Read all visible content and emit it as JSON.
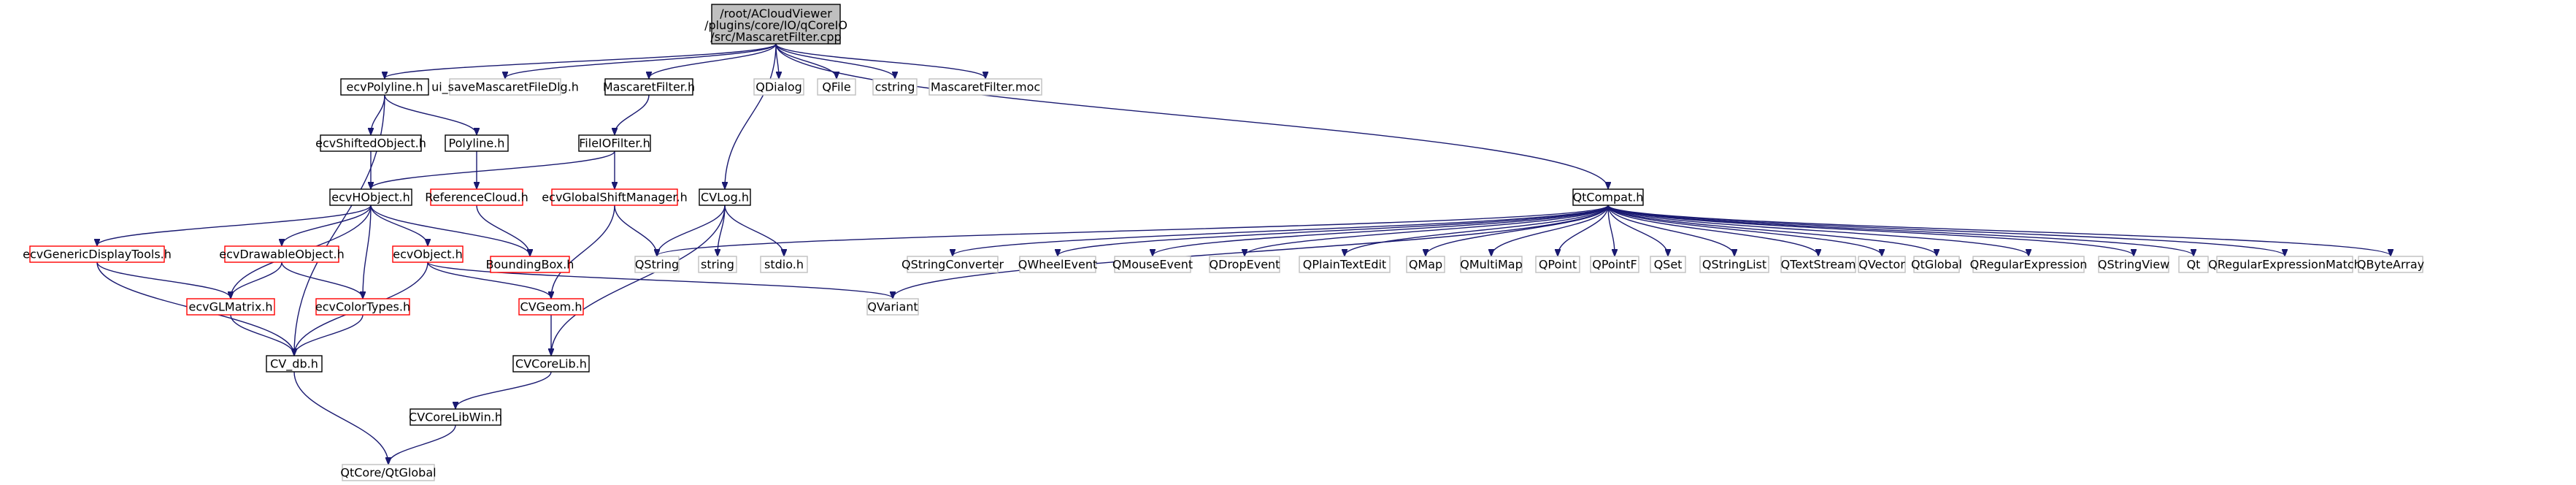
{
  "graph": {
    "root": {
      "id": "root",
      "lines": [
        "/root/ACloudViewer",
        "/plugins/core/IO/qCoreIO",
        "/src/MascaretFilter.cpp"
      ],
      "fill": "#bfbfbf",
      "stroke": "#000000"
    },
    "nodes": [
      {
        "id": "ecvPolyline",
        "label": "ecvPolyline.h",
        "style": "normal"
      },
      {
        "id": "ui_save",
        "label": "ui_saveMascaretFileDlg.h",
        "style": "missing"
      },
      {
        "id": "MascaretFilter_h",
        "label": "MascaretFilter.h",
        "style": "normal"
      },
      {
        "id": "QDialog",
        "label": "QDialog",
        "style": "missing"
      },
      {
        "id": "QFile",
        "label": "QFile",
        "style": "missing"
      },
      {
        "id": "cstring",
        "label": "cstring",
        "style": "missing"
      },
      {
        "id": "moc",
        "label": "MascaretFilter.moc",
        "style": "missing"
      },
      {
        "id": "ecvShifted",
        "label": "ecvShiftedObject.h",
        "style": "normal"
      },
      {
        "id": "Polyline",
        "label": "Polyline.h",
        "style": "normal"
      },
      {
        "id": "FileIOFilter",
        "label": "FileIOFilter.h",
        "style": "normal"
      },
      {
        "id": "ecvHObject",
        "label": "ecvHObject.h",
        "style": "normal"
      },
      {
        "id": "RefCloud",
        "label": "ReferenceCloud.h",
        "style": "truncated"
      },
      {
        "id": "GlobalShift",
        "label": "ecvGlobalShiftManager.h",
        "style": "truncated"
      },
      {
        "id": "CVLog",
        "label": "CVLog.h",
        "style": "normal"
      },
      {
        "id": "QtCompat",
        "label": "QtCompat.h",
        "style": "normal"
      },
      {
        "id": "GenericDisplay",
        "label": "ecvGenericDisplayTools.h",
        "style": "truncated"
      },
      {
        "id": "DrawableObj",
        "label": "ecvDrawableObject.h",
        "style": "truncated"
      },
      {
        "id": "ecvObject",
        "label": "ecvObject.h",
        "style": "truncated"
      },
      {
        "id": "BBox",
        "label": "BoundingBox.h",
        "style": "truncated"
      },
      {
        "id": "QString",
        "label": "QString",
        "style": "missing"
      },
      {
        "id": "string",
        "label": "string",
        "style": "missing"
      },
      {
        "id": "stdio",
        "label": "stdio.h",
        "style": "missing"
      },
      {
        "id": "QStringConverter",
        "label": "QStringConverter",
        "style": "missing"
      },
      {
        "id": "QWheelEvent",
        "label": "QWheelEvent",
        "style": "missing"
      },
      {
        "id": "QMouseEvent",
        "label": "QMouseEvent",
        "style": "missing"
      },
      {
        "id": "QDropEvent",
        "label": "QDropEvent",
        "style": "missing"
      },
      {
        "id": "QPlainTextEdit",
        "label": "QPlainTextEdit",
        "style": "missing"
      },
      {
        "id": "QMap",
        "label": "QMap",
        "style": "missing"
      },
      {
        "id": "QMultiMap",
        "label": "QMultiMap",
        "style": "missing"
      },
      {
        "id": "QPoint",
        "label": "QPoint",
        "style": "missing"
      },
      {
        "id": "QPointF",
        "label": "QPointF",
        "style": "missing"
      },
      {
        "id": "QSet",
        "label": "QSet",
        "style": "missing"
      },
      {
        "id": "QStringList",
        "label": "QStringList",
        "style": "missing"
      },
      {
        "id": "QTextStream",
        "label": "QTextStream",
        "style": "missing"
      },
      {
        "id": "QVector",
        "label": "QVector",
        "style": "missing"
      },
      {
        "id": "QtGlobal",
        "label": "QtGlobal",
        "style": "missing"
      },
      {
        "id": "QRegularExpression",
        "label": "QRegularExpression",
        "style": "missing"
      },
      {
        "id": "QStringView",
        "label": "QStringView",
        "style": "missing"
      },
      {
        "id": "Qt",
        "label": "Qt",
        "style": "missing"
      },
      {
        "id": "QRegExMatch",
        "label": "QRegularExpressionMatch",
        "style": "missing"
      },
      {
        "id": "QByteArray",
        "label": "QByteArray",
        "style": "missing"
      },
      {
        "id": "QVariant",
        "label": "QVariant",
        "style": "missing"
      },
      {
        "id": "GLMatrix",
        "label": "ecvGLMatrix.h",
        "style": "truncated"
      },
      {
        "id": "ColorTypes",
        "label": "ecvColorTypes.h",
        "style": "truncated"
      },
      {
        "id": "CVGeom",
        "label": "CVGeom.h",
        "style": "truncated"
      },
      {
        "id": "CV_db",
        "label": "CV_db.h",
        "style": "normal"
      },
      {
        "id": "CVCoreLib",
        "label": "CVCoreLib.h",
        "style": "normal"
      },
      {
        "id": "CVCoreLibWin",
        "label": "CVCoreLibWin.h",
        "style": "normal"
      },
      {
        "id": "QtCoreGlobal",
        "label": "QtCore/QtGlobal",
        "style": "missing"
      }
    ],
    "edges": [
      [
        "root",
        "ecvPolyline"
      ],
      [
        "root",
        "ui_save"
      ],
      [
        "root",
        "MascaretFilter_h"
      ],
      [
        "root",
        "QDialog"
      ],
      [
        "root",
        "QFile"
      ],
      [
        "root",
        "cstring"
      ],
      [
        "root",
        "moc"
      ],
      [
        "root",
        "CVLog"
      ],
      [
        "root",
        "QtCompat"
      ],
      [
        "ecvPolyline",
        "ecvShifted"
      ],
      [
        "ecvPolyline",
        "Polyline"
      ],
      [
        "ecvPolyline",
        "CV_db"
      ],
      [
        "ecvShifted",
        "ecvHObject"
      ],
      [
        "Polyline",
        "RefCloud"
      ],
      [
        "MascaretFilter_h",
        "FileIOFilter"
      ],
      [
        "FileIOFilter",
        "ecvHObject"
      ],
      [
        "FileIOFilter",
        "GlobalShift"
      ],
      [
        "ecvHObject",
        "GenericDisplay"
      ],
      [
        "ecvHObject",
        "DrawableObj"
      ],
      [
        "ecvHObject",
        "ecvObject"
      ],
      [
        "ecvHObject",
        "BBox"
      ],
      [
        "ecvHObject",
        "GLMatrix"
      ],
      [
        "ecvHObject",
        "ColorTypes"
      ],
      [
        "RefCloud",
        "BBox"
      ],
      [
        "GlobalShift",
        "QString"
      ],
      [
        "GlobalShift",
        "CVGeom"
      ],
      [
        "CVLog",
        "QString"
      ],
      [
        "CVLog",
        "string"
      ],
      [
        "CVLog",
        "stdio"
      ],
      [
        "CVLog",
        "CVCoreLib"
      ],
      [
        "GenericDisplay",
        "GLMatrix"
      ],
      [
        "GenericDisplay",
        "CV_db"
      ],
      [
        "DrawableObj",
        "GLMatrix"
      ],
      [
        "DrawableObj",
        "ColorTypes"
      ],
      [
        "ecvObject",
        "CVGeom"
      ],
      [
        "ecvObject",
        "QVariant"
      ],
      [
        "ecvObject",
        "CV_db"
      ],
      [
        "GLMatrix",
        "CV_db"
      ],
      [
        "ColorTypes",
        "CV_db"
      ],
      [
        "CVGeom",
        "CVCoreLib"
      ],
      [
        "CVCoreLib",
        "CVCoreLibWin"
      ],
      [
        "CVCoreLibWin",
        "QtCoreGlobal"
      ],
      [
        "CV_db",
        "QtCoreGlobal"
      ],
      [
        "QtCompat",
        "QString"
      ],
      [
        "QtCompat",
        "QVariant"
      ],
      [
        "QtCompat",
        "QStringConverter"
      ],
      [
        "QtCompat",
        "QWheelEvent"
      ],
      [
        "QtCompat",
        "QMouseEvent"
      ],
      [
        "QtCompat",
        "QDropEvent"
      ],
      [
        "QtCompat",
        "QPlainTextEdit"
      ],
      [
        "QtCompat",
        "QMap"
      ],
      [
        "QtCompat",
        "QMultiMap"
      ],
      [
        "QtCompat",
        "QPoint"
      ],
      [
        "QtCompat",
        "QPointF"
      ],
      [
        "QtCompat",
        "QSet"
      ],
      [
        "QtCompat",
        "QStringList"
      ],
      [
        "QtCompat",
        "QTextStream"
      ],
      [
        "QtCompat",
        "QVector"
      ],
      [
        "QtCompat",
        "QtGlobal"
      ],
      [
        "QtCompat",
        "QRegularExpression"
      ],
      [
        "QtCompat",
        "QStringView"
      ],
      [
        "QtCompat",
        "Qt"
      ],
      [
        "QtCompat",
        "QRegExMatch"
      ],
      [
        "QtCompat",
        "QByteArray"
      ]
    ],
    "colors": {
      "edge": "#191970",
      "normal_border": "#000000",
      "truncated_border": "#ff0000",
      "missing_border": "#bfbfbf",
      "node_fill": "#ffffff"
    }
  }
}
